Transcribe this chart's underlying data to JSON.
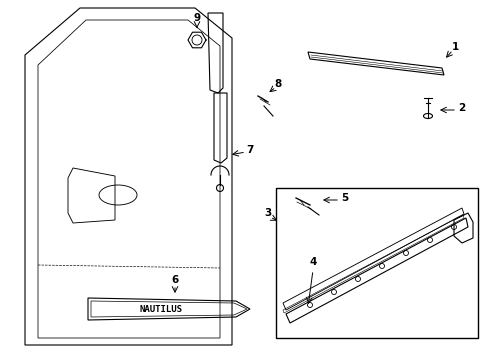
{
  "bg_color": "#ffffff",
  "line_color": "#000000",
  "lw": 0.8
}
